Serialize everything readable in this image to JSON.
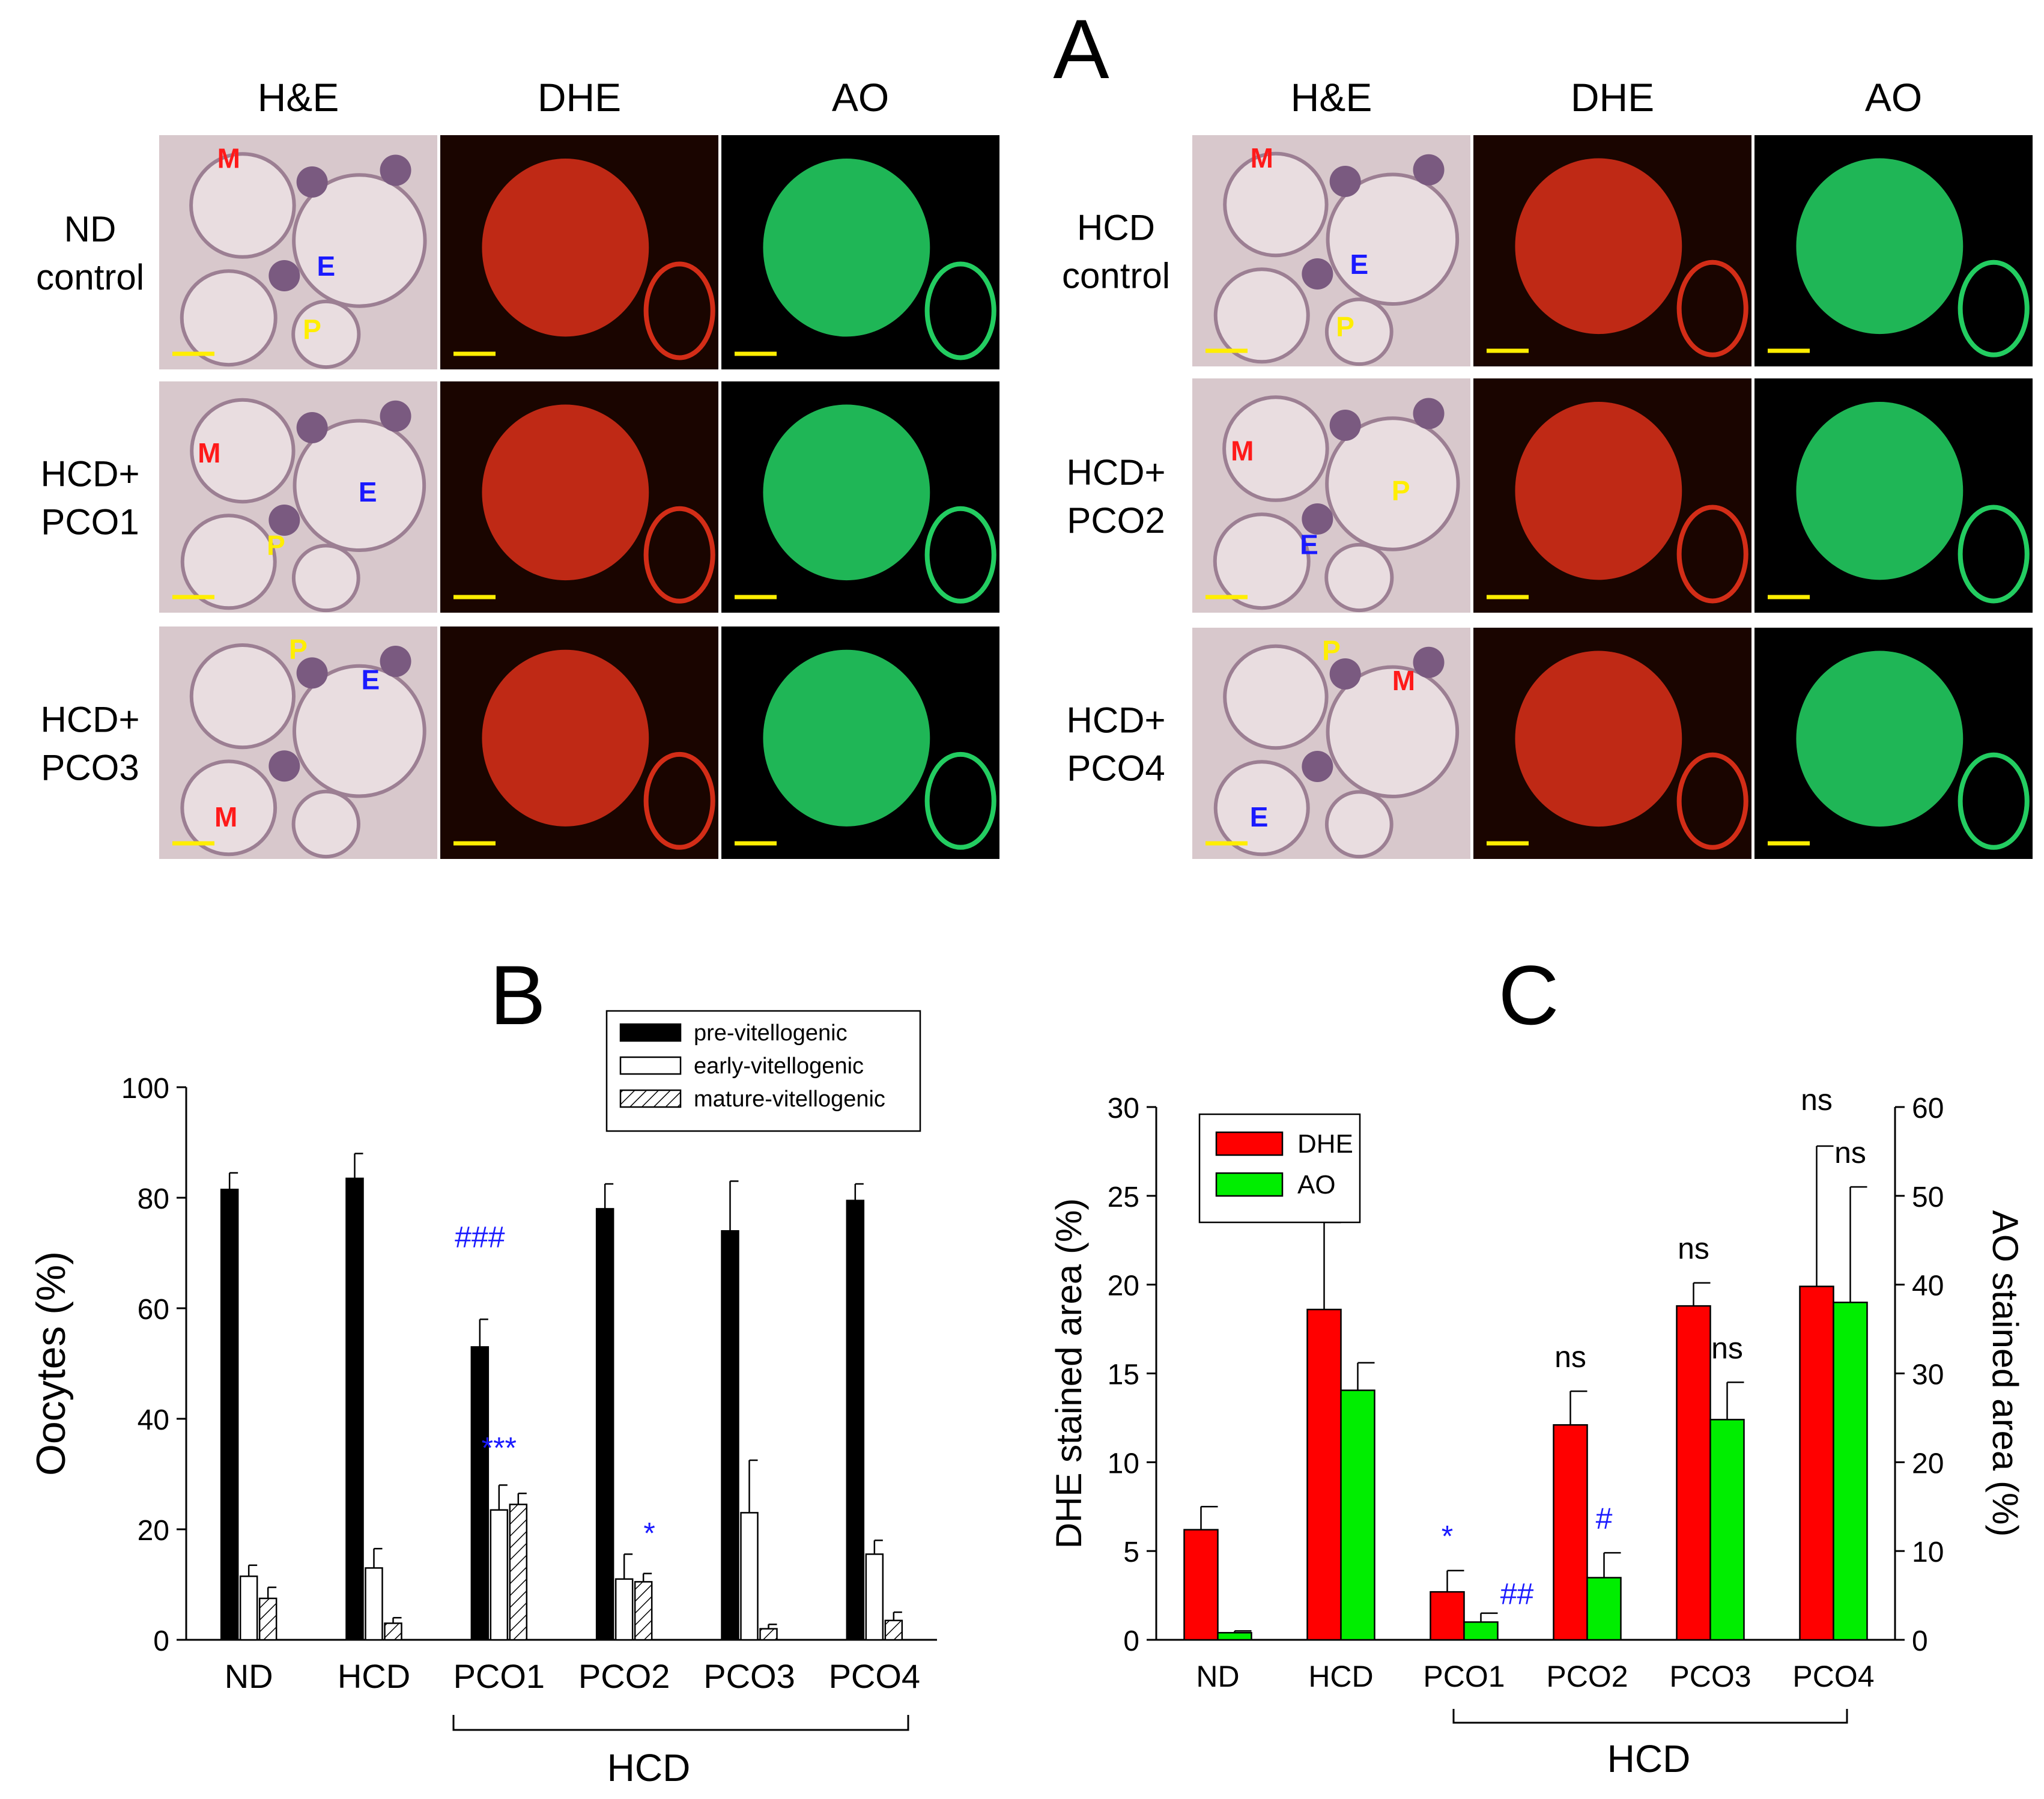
{
  "figure": {
    "panel_a": {
      "letter": "A",
      "columns": [
        "H&E",
        "DHE",
        "AO"
      ],
      "groups_left": [
        {
          "line1": "ND",
          "line2": "control",
          "markers": [
            "M",
            "E",
            "P"
          ]
        },
        {
          "line1": "HCD+",
          "line2": "PCO1",
          "markers": [
            "M",
            "E",
            "P"
          ]
        },
        {
          "line1": "HCD+",
          "line2": "PCO3",
          "markers": [
            "P",
            "E",
            "M"
          ]
        }
      ],
      "groups_right": [
        {
          "line1": "HCD",
          "line2": "control",
          "markers": [
            "M",
            "E",
            "P"
          ]
        },
        {
          "line1": "HCD+",
          "line2": "PCO2",
          "markers": [
            "M",
            "P",
            "E"
          ]
        },
        {
          "line1": "HCD+",
          "line2": "PCO4",
          "markers": [
            "P",
            "M",
            "E"
          ]
        }
      ],
      "marker_colors": {
        "M": "#ff1a1a",
        "E": "#1a1aff",
        "P": "#ffee00"
      },
      "scale_bar_color": "#ffee00",
      "he_background": "#d8c8cc",
      "dhe_color": "#e8321a",
      "ao_color": "#27e36b"
    },
    "panel_b": {
      "letter": "B",
      "group_label": "HCD"
    },
    "panel_c": {
      "letter": "C",
      "group_label": "HCD"
    }
  },
  "chart_data": [
    {
      "type": "bar",
      "panel": "B",
      "categories": [
        "ND",
        "HCD",
        "PCO1",
        "PCO2",
        "PCO3",
        "PCO4"
      ],
      "ylabel": "Oocytes (%)",
      "xlabel": "",
      "ylim": [
        0,
        100
      ],
      "yticks": [
        0,
        20,
        40,
        60,
        80,
        100
      ],
      "legend_position": "top-right",
      "series": [
        {
          "name": "pre-vitellogenic",
          "fill": "black",
          "values": [
            81.5,
            83.5,
            53,
            78,
            74,
            79.5
          ],
          "errors": [
            3,
            4.5,
            5,
            4.5,
            9,
            3
          ]
        },
        {
          "name": "early-vitellogenic",
          "fill": "white",
          "values": [
            11.5,
            13,
            23.5,
            11,
            23,
            15.5
          ],
          "errors": [
            2,
            3.5,
            4.5,
            4.5,
            9.5,
            2.5
          ]
        },
        {
          "name": "mature-vitellogenic",
          "fill": "hatched",
          "values": [
            7.5,
            3,
            24.5,
            10.5,
            2,
            3.5
          ],
          "errors": [
            2,
            1,
            2,
            1.5,
            0.8,
            1.5
          ]
        }
      ],
      "annotations": [
        {
          "text": "###",
          "category": "PCO1",
          "color": "#1a1aff"
        },
        {
          "text": "***",
          "category": "PCO1",
          "color": "#1a1aff"
        },
        {
          "text": "*",
          "category": "PCO2",
          "color": "#1a1aff"
        }
      ]
    },
    {
      "type": "bar",
      "panel": "C",
      "categories": [
        "ND",
        "HCD",
        "PCO1",
        "PCO2",
        "PCO3",
        "PCO4"
      ],
      "ylabel": "DHE stained area (%)",
      "y2label": "AO stained area (%)",
      "xlabel": "",
      "ylim": [
        0,
        30
      ],
      "y2lim": [
        0,
        60
      ],
      "yticks": [
        0,
        5,
        10,
        15,
        20,
        25,
        30
      ],
      "y2ticks": [
        0,
        10,
        20,
        30,
        40,
        50,
        60
      ],
      "legend_position": "top-left",
      "series": [
        {
          "name": "DHE",
          "color": "#ff0000",
          "axis": "left",
          "values": [
            6.2,
            18.6,
            2.7,
            12.1,
            18.8,
            19.9
          ],
          "errors": [
            1.3,
            4.9,
            1.2,
            1.9,
            1.3,
            7.9
          ]
        },
        {
          "name": "AO",
          "color": "#00ee00",
          "axis": "right",
          "values": [
            0.8,
            28.1,
            2,
            7,
            24.8,
            38
          ],
          "errors": [
            0.2,
            3.1,
            1,
            2.8,
            4.2,
            13
          ]
        }
      ],
      "annotations": [
        {
          "text": "*",
          "category": "PCO1",
          "series": "DHE",
          "color": "#1a1aff"
        },
        {
          "text": "##",
          "category": "PCO1",
          "series": "AO",
          "color": "#1a1aff"
        },
        {
          "text": "#",
          "category": "PCO2",
          "series": "AO",
          "color": "#1a1aff"
        },
        {
          "text": "ns",
          "category": "PCO2",
          "series": "DHE",
          "color": "#000000"
        },
        {
          "text": "ns",
          "category": "PCO3",
          "series": "DHE",
          "color": "#000000"
        },
        {
          "text": "ns",
          "category": "PCO3",
          "series": "AO",
          "color": "#000000"
        },
        {
          "text": "ns",
          "category": "PCO4",
          "series": "DHE",
          "color": "#000000"
        },
        {
          "text": "ns",
          "category": "PCO4",
          "series": "AO",
          "color": "#000000"
        }
      ]
    }
  ]
}
